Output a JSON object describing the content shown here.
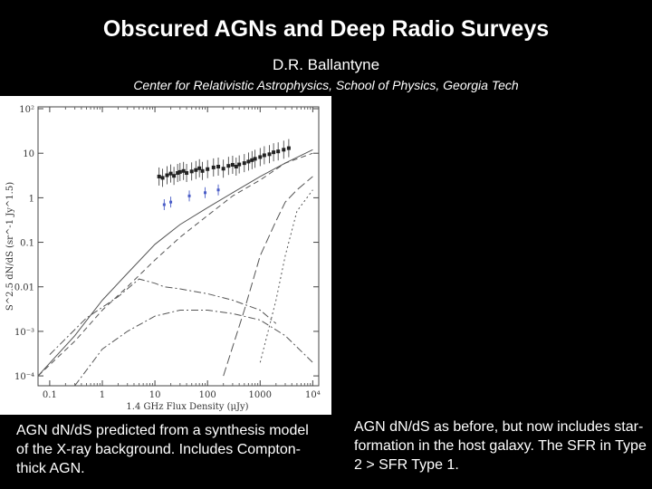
{
  "slide": {
    "title": "Obscured AGNs and Deep Radio Surveys",
    "author": "D.R. Ballantyne",
    "affiliation": "Center for Relativistic Astrophysics, School of Physics, Georgia Tech",
    "caption_left": "AGN dN/dS predicted from a synthesis model of the X-ray background. Includes Compton-thick AGN.",
    "caption_right": "AGN dN/dS as before, but now includes star-formation in the host galaxy. The SFR in Type 2 > SFR Type 1."
  },
  "chart_data": {
    "type": "line",
    "xlabel": "1.4 GHz Flux Density (μJy)",
    "ylabel": "S^2.5 dN/dS (sr^-1 Jy^1.5)",
    "x_scale": "log",
    "y_scale": "log",
    "xlim": [
      0.06,
      13000
    ],
    "ylim": [
      6e-05,
      110
    ],
    "x_ticks": [
      "0.1",
      "1",
      "10",
      "100",
      "1000",
      "10⁴"
    ],
    "y_ticks": [
      "10²",
      "10",
      "1",
      "0.1",
      "0.01",
      "10⁻³",
      "10⁻⁴"
    ],
    "x_tick_values": [
      0.1,
      1,
      10,
      100,
      1000,
      10000
    ],
    "y_tick_values": [
      100,
      10,
      1,
      0.1,
      0.01,
      0.001,
      0.0001
    ],
    "series": [
      {
        "style": "solid",
        "x": [
          0.06,
          0.3,
          1,
          3,
          10,
          30,
          100,
          300,
          1000,
          3000,
          10000
        ],
        "y": [
          0.0001,
          0.0008,
          0.005,
          0.02,
          0.09,
          0.25,
          0.6,
          1.3,
          3,
          6,
          12
        ]
      },
      {
        "style": "dashed",
        "x": [
          0.06,
          0.3,
          1,
          3,
          10,
          30,
          100,
          300,
          1000,
          3000,
          10000
        ],
        "y": [
          0.0001,
          0.0006,
          0.003,
          0.01,
          0.04,
          0.13,
          0.4,
          1.1,
          2.5,
          6,
          10
        ]
      },
      {
        "style": "dashdot",
        "x": [
          0.1,
          0.5,
          2,
          5,
          10,
          15,
          30,
          100,
          300,
          1000,
          2000
        ],
        "y": [
          0.0003,
          0.002,
          0.006,
          0.015,
          0.012,
          0.01,
          0.009,
          0.007,
          0.005,
          0.003,
          0.0015
        ]
      },
      {
        "style": "dashdot",
        "x": [
          0.3,
          1,
          3,
          10,
          30,
          100,
          300,
          1000,
          3000,
          10000
        ],
        "y": [
          6e-05,
          0.0004,
          0.001,
          0.0022,
          0.003,
          0.003,
          0.0025,
          0.0018,
          0.0008,
          0.0002
        ]
      },
      {
        "style": "longdash",
        "x": [
          200,
          500,
          1000,
          2000,
          3000,
          5000,
          10000
        ],
        "y": [
          0.0001,
          0.003,
          0.05,
          0.3,
          0.8,
          1.5,
          3
        ]
      },
      {
        "style": "dotted",
        "x": [
          1000,
          2000,
          3000,
          5000,
          10000
        ],
        "y": [
          0.0002,
          0.005,
          0.05,
          0.5,
          1.5
        ]
      }
    ],
    "points": {
      "x": [
        12,
        14,
        17,
        20,
        23,
        27,
        30,
        35,
        40,
        50,
        60,
        70,
        80,
        100,
        130,
        160,
        200,
        250,
        300,
        350,
        400,
        500,
        600,
        700,
        800,
        1000,
        1200,
        1500,
        1800,
        2200,
        2800,
        3500
      ],
      "y": [
        3,
        2.8,
        3.2,
        3.5,
        3.1,
        3.6,
        3.8,
        4,
        3.6,
        3.9,
        4.2,
        4.6,
        4,
        4.4,
        4.8,
        5,
        4.5,
        5.2,
        5.5,
        5,
        5.6,
        6,
        6.5,
        7,
        7.5,
        8.2,
        9,
        9.5,
        10.5,
        11,
        12,
        13
      ]
    },
    "blue_points": {
      "x": [
        15,
        20,
        45,
        90,
        160
      ],
      "y": [
        0.7,
        0.8,
        1.1,
        1.3,
        1.5
      ]
    }
  }
}
